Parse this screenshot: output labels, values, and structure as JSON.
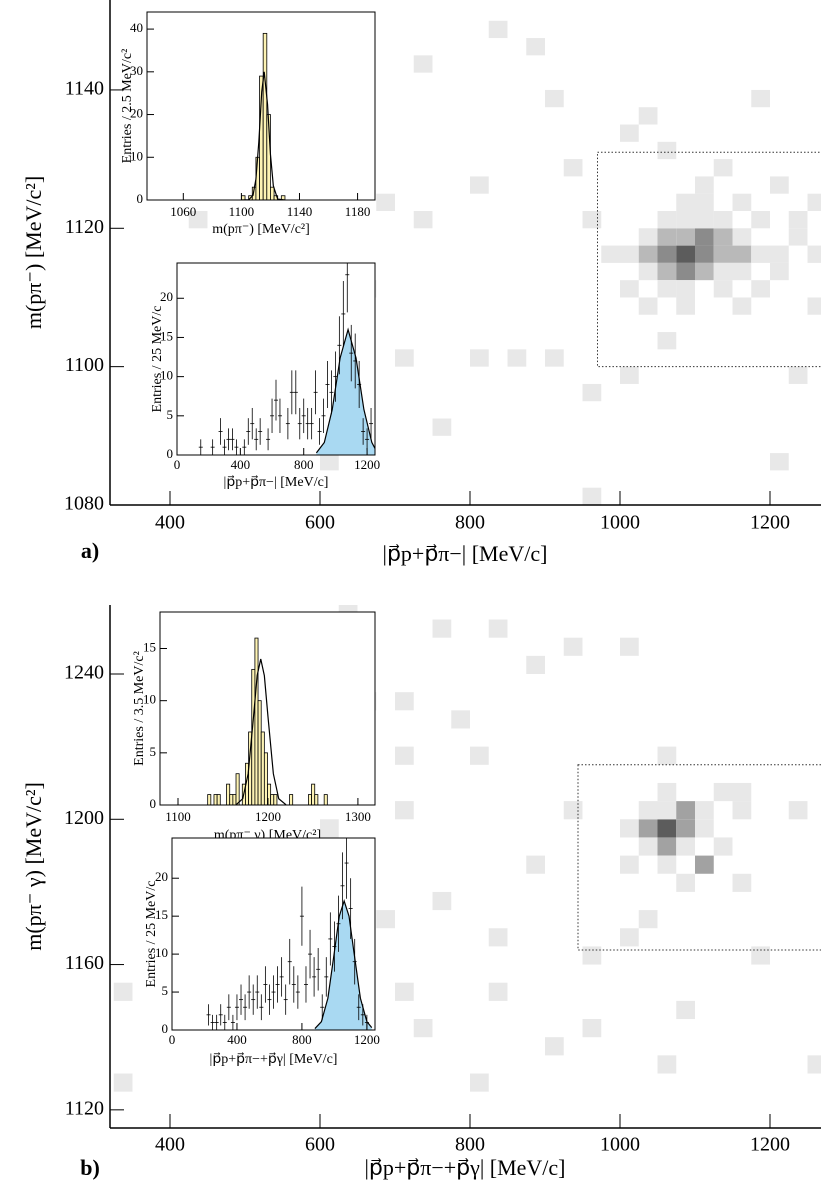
{
  "chart_data": [
    {
      "type": "heatmap",
      "label": "a)",
      "xlabel": "|p⃗p+p⃗π−|  [MeV/c]",
      "ylabel": "m(pπ⁻)  [MeV/c²]",
      "xlim": [
        320,
        1268
      ],
      "ylim": [
        1080,
        1153
      ],
      "xticks": [
        400,
        600,
        800,
        1000,
        1200
      ],
      "yticks": [
        1080,
        1100,
        1120,
        1140
      ],
      "cell_width": 25,
      "cell_height": 2.5,
      "x": [
        975,
        1000,
        1025,
        1050,
        1075,
        1100,
        1125,
        1150,
        1175,
        1200,
        1250,
        1025,
        1050,
        1075,
        1100,
        1125,
        1150,
        1200,
        1025,
        1050,
        1075,
        1100,
        1125,
        1150,
        1225,
        1000,
        1050,
        1075,
        1125,
        1175,
        1025,
        1075,
        1150,
        1250,
        1050,
        1075,
        1100,
        1125,
        1175,
        1225,
        1075,
        1100,
        1150,
        1050,
        875,
        825,
        725,
        900,
        1025,
        1000,
        925,
        800,
        950,
        725,
        675,
        650,
        700,
        900,
        950,
        1000,
        1100,
        1050,
        1200,
        1250,
        600,
        1200,
        950,
        425,
        800,
        850,
        1225,
        1125,
        1175,
        750
      ],
      "y": [
        1115,
        1115,
        1115,
        1115,
        1115,
        1115,
        1115,
        1115,
        1115,
        1115,
        1115,
        1112.5,
        1112.5,
        1112.5,
        1112.5,
        1112.5,
        1112.5,
        1112.5,
        1117.5,
        1117.5,
        1117.5,
        1117.5,
        1117.5,
        1117.5,
        1117.5,
        1110,
        1110,
        1110,
        1110,
        1110,
        1107.5,
        1107.5,
        1107.5,
        1107.5,
        1120,
        1120,
        1120,
        1120,
        1120,
        1120,
        1122.5,
        1122.5,
        1122.5,
        1102.5,
        1145,
        1147.5,
        1142.5,
        1137.5,
        1135,
        1132.5,
        1127.5,
        1125,
        1120,
        1120,
        1122.5,
        1110,
        1100,
        1100,
        1095,
        1097.5,
        1125,
        1130,
        1125,
        1122.5,
        1085,
        1085,
        1080,
        1120,
        1100,
        1100,
        1097.5,
        1127.5,
        1137.5,
        1090
      ],
      "values": [
        1,
        1,
        2,
        3,
        4,
        3,
        2,
        2,
        1,
        1,
        1,
        1,
        2,
        3,
        2,
        1,
        1,
        1,
        1,
        2,
        2,
        3,
        2,
        1,
        1,
        1,
        1,
        1,
        1,
        1,
        1,
        1,
        1,
        1,
        1,
        1,
        1,
        1,
        1,
        1,
        1,
        1,
        1,
        1,
        1,
        1,
        1,
        1,
        1,
        1,
        1,
        1,
        1,
        1,
        1,
        1,
        1,
        1,
        1,
        1,
        1,
        1,
        1,
        1,
        1,
        1,
        1,
        1,
        1,
        1,
        1,
        1,
        1,
        1
      ],
      "region": {
        "x": [
          970,
          1300
        ],
        "y": [
          1100,
          1131
        ]
      }
    },
    {
      "type": "histogram",
      "xlabel": "m(pπ⁻) [MeV/c²]",
      "ylabel": "Entries / 2.5 MeV/c²",
      "xlim": [
        1035,
        1192
      ],
      "ylim": [
        0,
        44
      ],
      "xticks": [
        1060,
        1100,
        1140,
        1180
      ],
      "yticks": [
        0,
        10,
        20,
        30,
        40
      ],
      "bins": [
        1100,
        1102.5,
        1105,
        1107.5,
        1110,
        1112.5,
        1115,
        1117.5,
        1120,
        1122.5,
        1125,
        1127.5,
        1130
      ],
      "counts": [
        1,
        0,
        1,
        3,
        10,
        29,
        39,
        20,
        3,
        1,
        0,
        1
      ],
      "color": "#fdf3b4",
      "fit": {
        "x": [
          1100,
          1105,
          1108,
          1110,
          1112,
          1114,
          1115.7,
          1118,
          1120,
          1122,
          1125,
          1130
        ],
        "y": [
          0,
          0.05,
          1.1,
          4.9,
          13.6,
          25.3,
          30,
          22.4,
          10.7,
          3.3,
          0.2,
          0
        ]
      }
    },
    {
      "type": "errorbar",
      "xlabel": "|p⃗p+p⃗π−|  [MeV/c]",
      "ylabel": "Entries / 25 MeV/c",
      "xlim": [
        0,
        1250
      ],
      "ylim": [
        0,
        24.5
      ],
      "xticks": [
        0,
        400,
        800,
        1200
      ],
      "yticks": [
        0,
        5,
        10,
        15,
        20
      ],
      "x": [
        150,
        225,
        275,
        300,
        325,
        350,
        375,
        425,
        450,
        475,
        500,
        525,
        575,
        600,
        625,
        650,
        700,
        725,
        750,
        775,
        800,
        825,
        850,
        875,
        900,
        925,
        950,
        975,
        1000,
        1025,
        1050,
        1075,
        1100,
        1125,
        1150,
        1175,
        1200,
        1225
      ],
      "values": [
        1,
        1,
        3,
        1,
        2,
        2,
        1,
        1,
        3,
        4,
        2,
        3,
        2,
        5,
        7,
        5,
        4,
        8,
        8,
        4,
        5,
        4,
        4,
        8,
        3,
        5,
        9,
        8,
        10,
        14,
        18,
        23,
        13,
        12,
        9,
        3,
        2,
        4
      ],
      "errors": [
        1,
        1,
        1.7,
        1,
        1.4,
        1.4,
        1,
        1,
        1.7,
        2,
        1.4,
        1.7,
        1.4,
        2.2,
        2.6,
        2.2,
        2,
        2.8,
        2.8,
        2,
        2.2,
        2,
        2,
        2.8,
        1.7,
        2.2,
        3,
        2.8,
        3.2,
        3.7,
        4.2,
        4.8,
        3.6,
        3.5,
        3,
        1.7,
        1.4,
        2
      ],
      "fit": {
        "x": [
          880,
          930,
          980,
          1030,
          1080,
          1130,
          1180,
          1230,
          1250
        ],
        "y": [
          0.27,
          1.6,
          5.8,
          12.4,
          16,
          12.4,
          5.8,
          1.6,
          0.84
        ],
        "color": "#a9d9f2"
      }
    },
    {
      "type": "heatmap",
      "label": "b)",
      "xlabel": "|p⃗p+p⃗π−+p⃗γ|  [MeV/c]",
      "ylabel": "m(pπ⁻ γ) [MeV/c²]",
      "xlim": [
        320,
        1268
      ],
      "ylim": [
        1115,
        1259
      ],
      "xticks": [
        400,
        600,
        800,
        1000,
        1200
      ],
      "yticks": [
        1120,
        1160,
        1200,
        1240
      ],
      "cell_width": 25,
      "cell_height": 5,
      "x": [
        1000,
        1025,
        1050,
        1075,
        1100,
        1025,
        1050,
        1075,
        1125,
        1025,
        1050,
        1075,
        1100,
        1150,
        1000,
        1050,
        1100,
        1050,
        1125,
        1075,
        1150,
        1025,
        1050,
        1000,
        525,
        575,
        625,
        750,
        825,
        925,
        1000,
        650,
        700,
        775,
        875,
        700,
        800,
        925,
        700,
        525,
        600,
        875,
        750,
        675,
        825,
        950,
        1175,
        700,
        825,
        725,
        950,
        1075,
        1050,
        1250,
        800,
        325,
        325,
        900,
        1150,
        1225
      ],
      "y": [
        1195,
        1195,
        1195,
        1195,
        1195,
        1190,
        1190,
        1190,
        1190,
        1200,
        1200,
        1200,
        1200,
        1200,
        1185,
        1185,
        1185,
        1205,
        1205,
        1180,
        1180,
        1170,
        1215,
        1165,
        1250,
        1245,
        1255,
        1250,
        1250,
        1245,
        1245,
        1230,
        1230,
        1225,
        1240,
        1215,
        1215,
        1200,
        1200,
        1205,
        1195,
        1185,
        1175,
        1170,
        1165,
        1160,
        1160,
        1150,
        1150,
        1140,
        1140,
        1145,
        1130,
        1130,
        1125,
        1125,
        1150,
        1135,
        1205,
        1200
      ],
      "values": [
        1,
        2,
        3,
        2,
        1,
        1,
        2,
        1,
        1,
        1,
        1,
        2,
        1,
        1,
        1,
        1,
        2,
        1,
        1,
        1,
        1,
        1,
        1,
        1,
        1,
        1,
        1,
        1,
        1,
        1,
        1,
        1,
        1,
        1,
        1,
        1,
        1,
        1,
        1,
        1,
        1,
        1,
        1,
        1,
        1,
        1,
        1,
        1,
        1,
        1,
        1,
        1,
        1,
        1,
        1,
        1,
        1,
        1,
        1,
        1
      ],
      "region": {
        "x": [
          944,
          1300
        ],
        "y": [
          1164,
          1215
        ]
      }
    },
    {
      "type": "histogram",
      "xlabel": "m(pπ⁻ γ) [MeV/c²]",
      "ylabel": "Entries / 3.5 MeV/c²",
      "xlim": [
        1080,
        1319
      ],
      "ylim": [
        0,
        18.5
      ],
      "xticks": [
        1100,
        1200,
        1300
      ],
      "yticks": [
        0,
        5,
        10,
        15
      ],
      "bins": [
        1133,
        1136.5,
        1140,
        1143.5,
        1147,
        1150.5,
        1154,
        1157.5,
        1161,
        1164.5,
        1168,
        1171.5,
        1175,
        1178.5,
        1182,
        1185.5,
        1189,
        1192.5,
        1196,
        1199.5,
        1203,
        1206.5,
        1210,
        1213.5,
        1217,
        1220.5,
        1224,
        1227.5,
        1231,
        1234.5,
        1238,
        1241.5,
        1245,
        1248.5,
        1252,
        1255.5,
        1259,
        1262.5,
        1266
      ],
      "counts": [
        1,
        0,
        1,
        1,
        0,
        0,
        2,
        1,
        1,
        3,
        0,
        2,
        4,
        7,
        13,
        16,
        10,
        7,
        5,
        2,
        1,
        1,
        0,
        0,
        0,
        0,
        1,
        0,
        0,
        0,
        0,
        0,
        1,
        2,
        1,
        0,
        0,
        1
      ],
      "color": "#fdf3b4",
      "fit": {
        "x": [
          1165,
          1172,
          1178,
          1184,
          1188,
          1192,
          1196,
          1200,
          1206,
          1212,
          1220
        ],
        "y": [
          0.05,
          0.6,
          3.0,
          8.5,
          12.4,
          14,
          12.4,
          8.5,
          3.0,
          0.6,
          0.03
        ]
      }
    },
    {
      "type": "errorbar",
      "xlabel": "|p⃗p+p⃗π−+p⃗γ|  [MeV/c]",
      "ylabel": "Entries / 25 MeV/c",
      "xlim": [
        0,
        1250
      ],
      "ylim": [
        0,
        25.3
      ],
      "xticks": [
        0,
        400,
        800,
        1200
      ],
      "yticks": [
        0,
        5,
        10,
        15,
        20
      ],
      "x": [
        225,
        250,
        275,
        300,
        325,
        350,
        375,
        400,
        425,
        450,
        475,
        500,
        525,
        550,
        575,
        600,
        625,
        650,
        675,
        700,
        725,
        750,
        775,
        800,
        825,
        850,
        875,
        900,
        925,
        950,
        975,
        1000,
        1025,
        1050,
        1075,
        1100,
        1125,
        1150,
        1175,
        1200
      ],
      "values": [
        2,
        1,
        1,
        2,
        1,
        3,
        1,
        3,
        4,
        3,
        5,
        4,
        5,
        3,
        6,
        4,
        5,
        6,
        7,
        4,
        9,
        6,
        5,
        15,
        6,
        10,
        7,
        8,
        3,
        7,
        12,
        11,
        14,
        19,
        22,
        16,
        9,
        3,
        2,
        1
      ],
      "errors": [
        1.4,
        1,
        1,
        1.4,
        1,
        1.7,
        1,
        1.7,
        2,
        1.7,
        2.2,
        2,
        2.2,
        1.7,
        2.4,
        2,
        2.2,
        2.4,
        2.6,
        2,
        3,
        2.4,
        2.2,
        3.9,
        2.4,
        3.2,
        2.6,
        2.8,
        1.7,
        2.6,
        3.5,
        3.3,
        3.7,
        4.4,
        4.7,
        4,
        3,
        1.7,
        1.4,
        1
      ],
      "fit": {
        "x": [
          880,
          920,
          960,
          1000,
          1030,
          1060,
          1090,
          1120,
          1160,
          1200,
          1230
        ],
        "y": [
          0.19,
          1.1,
          4.2,
          10.3,
          15,
          17,
          15,
          10.3,
          4.2,
          1.1,
          0.31
        ],
        "color": "#a9d9f2"
      }
    }
  ]
}
